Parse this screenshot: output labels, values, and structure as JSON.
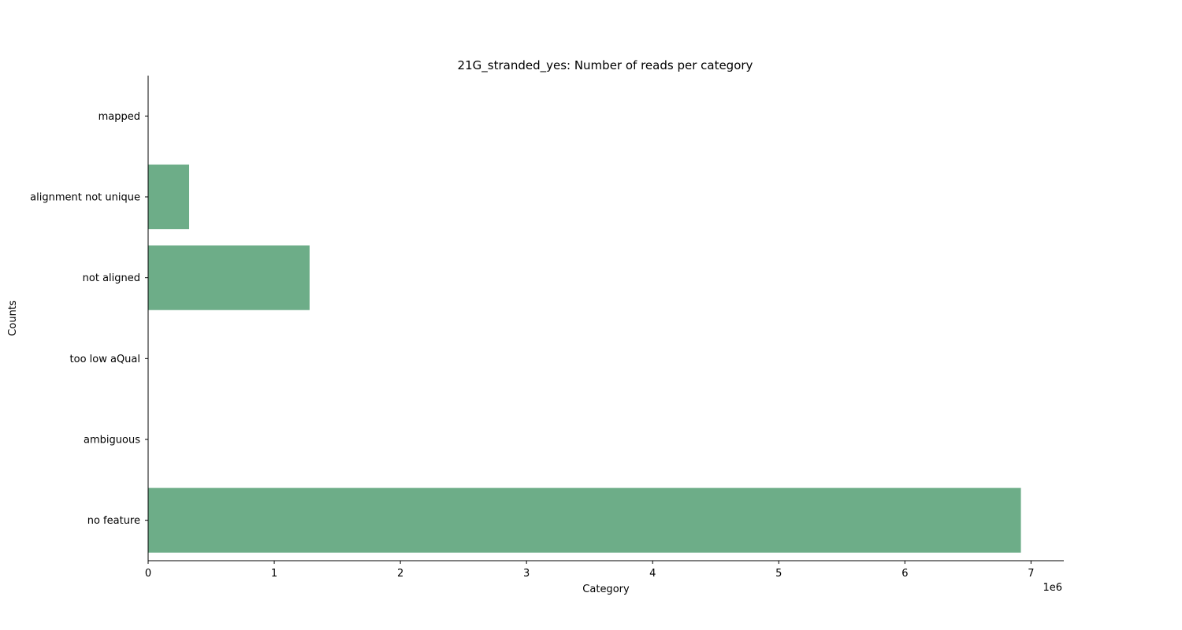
{
  "chart_data": {
    "type": "bar",
    "orientation": "horizontal",
    "title": "21G_stranded_yes: Number of reads per category",
    "xlabel": "Category",
    "ylabel": "Counts",
    "x_offset_label": "1e6",
    "x_scale": 1000000,
    "categories": [
      "mapped",
      "alignment not unique",
      "not aligned",
      "too low aQual",
      "ambiguous",
      "no feature"
    ],
    "values": [
      0,
      325000,
      1280000,
      0,
      0,
      6920000
    ],
    "xlim": [
      0,
      7260000
    ],
    "x_ticks": [
      0,
      1000000,
      2000000,
      3000000,
      4000000,
      5000000,
      6000000,
      7000000
    ],
    "x_tick_labels": [
      "0",
      "1",
      "2",
      "3",
      "4",
      "5",
      "6",
      "7"
    ],
    "bar_color": "#6dad88",
    "grid": false,
    "legend": "none"
  }
}
